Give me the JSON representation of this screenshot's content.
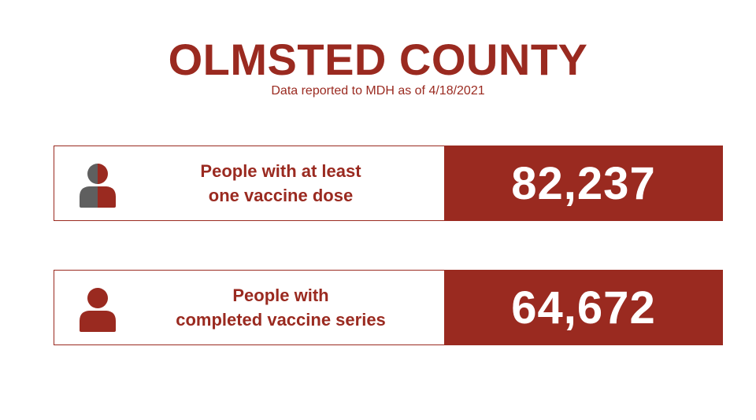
{
  "header": {
    "title": "OLMSTED COUNTY",
    "subtitle": "Data reported to MDH as of 4/18/2021"
  },
  "stats": [
    {
      "icon": "person-half-filled-icon",
      "label_line1": "People with at least",
      "label_line2": "one vaccine dose",
      "value": "82,237"
    },
    {
      "icon": "person-filled-icon",
      "label_line1": "People with",
      "label_line2": "completed vaccine series",
      "value": "64,672"
    }
  ],
  "colors": {
    "brand": "#9a2a20",
    "gray": "#5f5f5f",
    "background": "#ffffff"
  }
}
